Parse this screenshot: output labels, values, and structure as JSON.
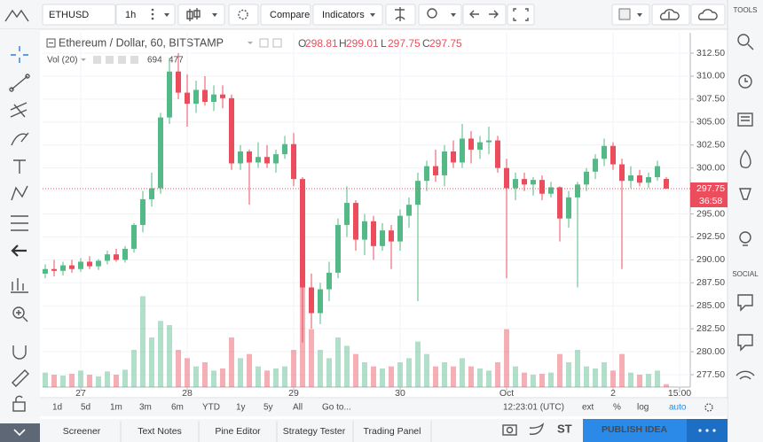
{
  "chart_data": {
    "type": "candlestick",
    "title": "Ethereum / Dollar, 60, BITSTAMP",
    "ohlc_letters": [
      "O",
      "H",
      "L",
      "C"
    ],
    "open": [
      288.5,
      289.0,
      288.8,
      289.4,
      289.0,
      289.8,
      289.3,
      289.9,
      290.6,
      290.0,
      291.2,
      293.8,
      296.6,
      297.8,
      305.5,
      310.5,
      308.2,
      307.0,
      308.5,
      307.2,
      308.0,
      307.6,
      300.5,
      301.8,
      300.6,
      301.2,
      300.5,
      301.5,
      302.6,
      298.8,
      287.0,
      284.2,
      286.8,
      288.6,
      293.8,
      296.2,
      292.2,
      294.2,
      291.5,
      293.2,
      292.0,
      294.8,
      296.0,
      298.6,
      300.2,
      299.2,
      301.8,
      300.6,
      303.2,
      302.0,
      302.8,
      303.0,
      300.0,
      297.8,
      298.8,
      298.2,
      298.7,
      297.2,
      297.9,
      294.5,
      296.8,
      298.2,
      299.6,
      301.0,
      302.4,
      300.4,
      298.6,
      299.2,
      298.4,
      299.0,
      298.81
    ],
    "high": [
      289.5,
      290.0,
      289.8,
      290.0,
      290.2,
      290.4,
      290.1,
      291.0,
      291.2,
      291.5,
      294.0,
      297.5,
      299.5,
      306.0,
      312.0,
      312.5,
      310.2,
      309.5,
      310.0,
      309.0,
      309.0,
      308.0,
      302.5,
      302.0,
      302.8,
      302.5,
      302.0,
      303.5,
      303.8,
      299.0,
      288.5,
      287.5,
      289.8,
      294.5,
      298.0,
      296.5,
      295.0,
      294.8,
      294.0,
      293.8,
      295.5,
      296.8,
      299.5,
      300.8,
      302.0,
      302.5,
      303.0,
      304.8,
      304.0,
      303.5,
      304.5,
      303.5,
      301.0,
      299.5,
      299.5,
      299.0,
      299.2,
      298.5,
      298.0,
      297.5,
      298.5,
      300.0,
      301.5,
      303.2,
      302.8,
      301.0,
      300.2,
      299.8,
      299.5,
      300.8,
      299.01
    ],
    "low": [
      288.0,
      288.2,
      288.3,
      288.6,
      288.7,
      289.0,
      288.9,
      289.5,
      289.8,
      289.7,
      290.8,
      293.0,
      295.8,
      297.2,
      304.8,
      307.5,
      304.5,
      306.0,
      306.8,
      306.2,
      306.5,
      299.8,
      299.8,
      296.0,
      300.0,
      300.0,
      299.5,
      301.0,
      298.0,
      281.0,
      282.5,
      283.0,
      285.5,
      288.0,
      292.5,
      291.0,
      290.5,
      290.0,
      291.0,
      289.0,
      291.0,
      293.5,
      285.5,
      297.5,
      298.5,
      298.0,
      300.0,
      300.0,
      300.5,
      301.0,
      301.5,
      299.5,
      288.0,
      296.5,
      297.5,
      297.0,
      296.5,
      296.8,
      292.0,
      293.5,
      287.0,
      297.5,
      298.8,
      300.2,
      299.8,
      289.0,
      297.8,
      298.0,
      297.8,
      298.6,
      297.75
    ],
    "close": [
      289.0,
      288.8,
      289.4,
      289.0,
      289.8,
      289.3,
      289.9,
      290.6,
      290.0,
      291.2,
      293.8,
      296.6,
      297.8,
      305.5,
      310.5,
      308.2,
      307.0,
      308.5,
      307.2,
      308.0,
      307.6,
      300.5,
      301.8,
      300.6,
      301.2,
      300.5,
      301.5,
      302.6,
      298.8,
      287.0,
      284.2,
      286.8,
      288.6,
      293.8,
      296.2,
      292.2,
      294.2,
      291.5,
      293.2,
      292.0,
      294.8,
      296.0,
      298.6,
      300.2,
      299.2,
      301.8,
      300.6,
      303.2,
      302.0,
      302.8,
      303.0,
      300.0,
      297.8,
      298.8,
      298.2,
      298.7,
      297.2,
      297.9,
      294.5,
      296.8,
      298.2,
      299.6,
      301.0,
      302.4,
      300.4,
      298.6,
      299.2,
      298.4,
      299.0,
      300.2,
      297.75
    ],
    "volume_label": "Vol (20)",
    "volume": [
      3500,
      3000,
      2800,
      3200,
      4000,
      3000,
      2600,
      3800,
      3000,
      4200,
      9000,
      22000,
      12000,
      16000,
      15000,
      9000,
      7000,
      5000,
      6000,
      4000,
      4500,
      12000,
      7000,
      8000,
      5000,
      4000,
      4500,
      5000,
      9000,
      26000,
      14000,
      9000,
      7000,
      12000,
      10000,
      8000,
      6000,
      5000,
      4500,
      5000,
      6000,
      7000,
      11000,
      8000,
      5000,
      6000,
      5000,
      7000,
      5000,
      4500,
      4000,
      6000,
      14000,
      5000,
      3500,
      3000,
      3200,
      3500,
      8000,
      6000,
      9000,
      5000,
      4500,
      6000,
      4000,
      8000,
      3500,
      3000,
      3200,
      4000,
      694
    ],
    "volume_ma": 477,
    "volume_ylim": [
      0,
      30000
    ],
    "up_color": "#53b987",
    "down_color": "#eb4d5c",
    "ylim": [
      276.15,
      314.72
    ],
    "yticks": [
      {
        "value": 277.5,
        "label": "277.50"
      },
      {
        "value": 280,
        "label": "280.00"
      },
      {
        "value": 282.5,
        "label": "282.50"
      },
      {
        "value": 285,
        "label": "285.00"
      },
      {
        "value": 287.5,
        "label": "287.50"
      },
      {
        "value": 290,
        "label": "290.00"
      },
      {
        "value": 292.5,
        "label": "292.50"
      },
      {
        "value": 295,
        "label": "295.00"
      },
      {
        "value": 297.5,
        "label": "297.50"
      },
      {
        "value": 300,
        "label": "300.00"
      },
      {
        "value": 302.5,
        "label": "302.50"
      },
      {
        "value": 305,
        "label": "305.00"
      },
      {
        "value": 307.5,
        "label": "307.50"
      },
      {
        "value": 310,
        "label": "310.00"
      },
      {
        "value": 312.5,
        "label": "312.50"
      }
    ],
    "xticks": [
      {
        "value": 4,
        "label": "27"
      },
      {
        "value": 16,
        "label": "28"
      },
      {
        "value": 28,
        "label": "29"
      },
      {
        "value": 40,
        "label": "30"
      },
      {
        "value": 52,
        "label": "Oct"
      },
      {
        "value": 64,
        "label": "2"
      },
      {
        "value": 71.5,
        "label": "15:00"
      }
    ],
    "grid": true,
    "countdown": "36:58"
  },
  "ui": {
    "symbol": "ETHUSD",
    "interval": "1h",
    "compare": "Compare",
    "indicators": "Indicators",
    "ranges": [
      "1d",
      "5d",
      "1m",
      "3m",
      "6m",
      "YTD",
      "1y",
      "5y",
      "All",
      "Go to..."
    ],
    "clock": "12:23:01 (UTC)",
    "scale_opts": [
      "ext",
      "%",
      "log",
      "auto"
    ],
    "tabs": [
      "Screener",
      "Text Notes",
      "Pine Editor",
      "Strategy Tester",
      "Trading Panel"
    ],
    "st": "ST",
    "publish": "PUBLISH IDEA",
    "tools": "TOOLS",
    "social": "SOCIAL"
  }
}
